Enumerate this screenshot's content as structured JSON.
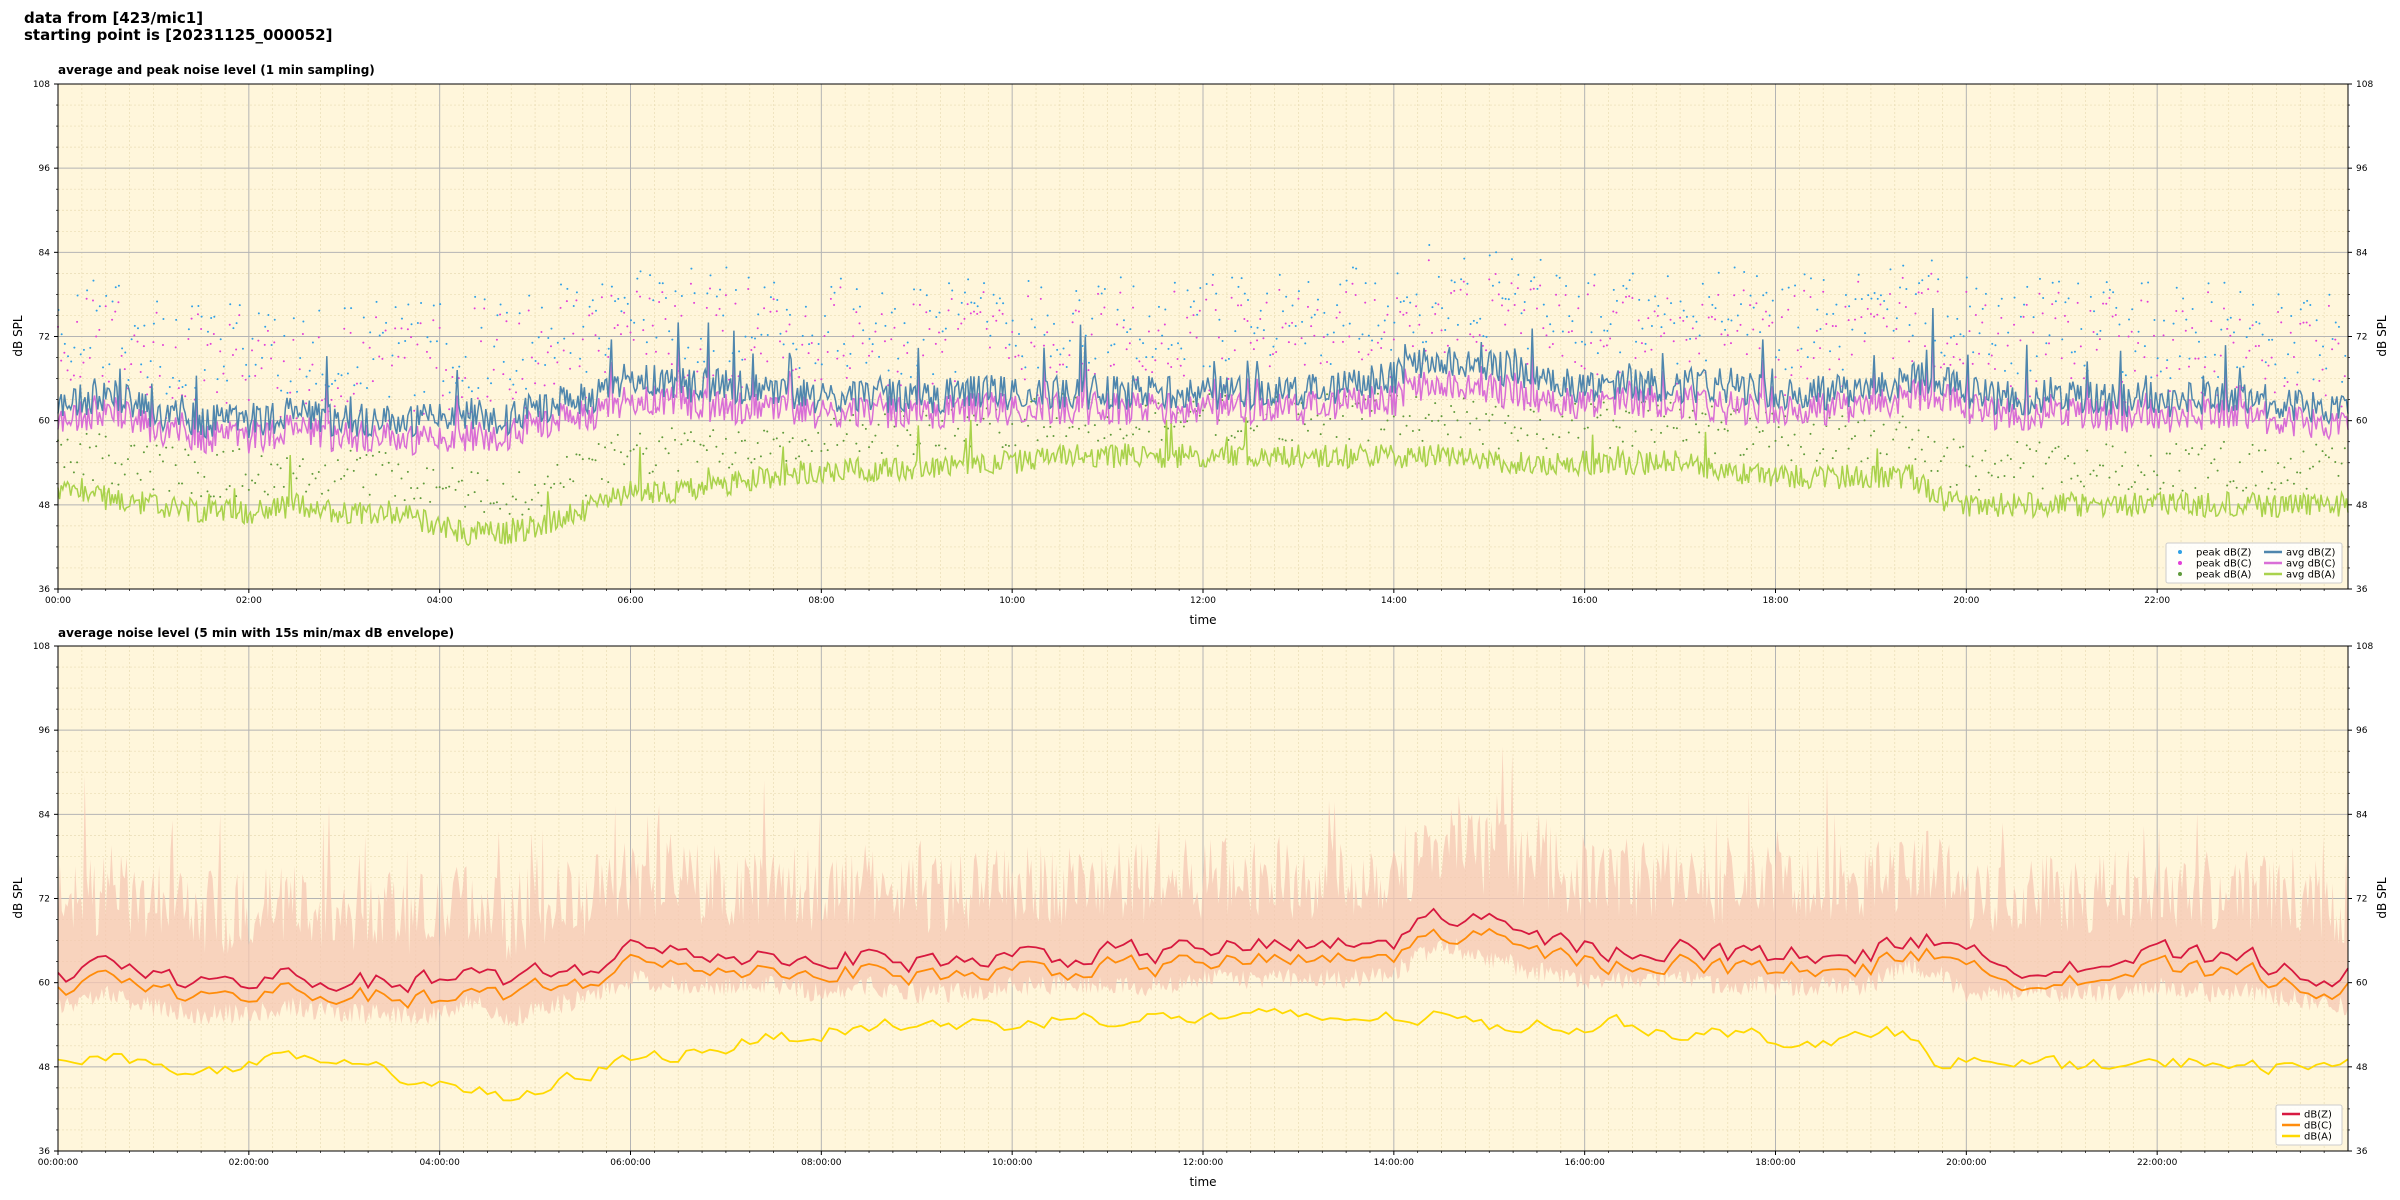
{
  "header": {
    "line1": "data from [423/mic1]",
    "line2": "starting point is [20231125_000052]"
  },
  "chart_data": [
    {
      "type": "line",
      "title": "average and peak noise level (1 min sampling)",
      "xlabel": "time",
      "ylabel": "dB SPL",
      "ylim": [
        36,
        108
      ],
      "yticks": [
        "36",
        "48",
        "60",
        "72",
        "84",
        "96",
        "108"
      ],
      "xlim_hours": [
        0,
        24
      ],
      "xtick_labels": [
        "00:00",
        "02:00",
        "04:00",
        "06:00",
        "08:00",
        "10:00",
        "12:00",
        "14:00",
        "16:00",
        "18:00",
        "20:00",
        "22:00"
      ],
      "grid": true,
      "legend_position": "bottom-right",
      "colors": {
        "plot_bg": "#fff6db",
        "avg_z": "#4f86ad",
        "avg_c": "#d96ed6",
        "avg_a": "#a9d24b",
        "peak_z": "#2fa0e6",
        "peak_c": "#e23fd8",
        "peak_a": "#5f9a3a"
      },
      "legend": [
        {
          "label": "peak dB(Z)",
          "kind": "dot",
          "color": "#2fa0e6"
        },
        {
          "label": "peak dB(C)",
          "kind": "dot",
          "color": "#e23fd8"
        },
        {
          "label": "peak dB(A)",
          "kind": "dot",
          "color": "#5f9a3a"
        },
        {
          "label": "avg dB(Z)",
          "kind": "line",
          "color": "#4f86ad"
        },
        {
          "label": "avg dB(C)",
          "kind": "line",
          "color": "#d96ed6"
        },
        {
          "label": "avg dB(A)",
          "kind": "line",
          "color": "#a9d24b"
        }
      ],
      "trend": {
        "hours": [
          0,
          0.5,
          1,
          1.5,
          2,
          2.5,
          3,
          3.5,
          4,
          4.3,
          4.7,
          5,
          5.5,
          6,
          6.5,
          7,
          7.5,
          8,
          8.5,
          9,
          9.5,
          10,
          10.5,
          11,
          11.5,
          12,
          12.5,
          13,
          13.5,
          14,
          14.5,
          15,
          15.5,
          16,
          16.5,
          17,
          17.5,
          18,
          18.5,
          19,
          19.4,
          19.7,
          20,
          20.5,
          21,
          21.5,
          22,
          22.5,
          23,
          23.5,
          24
        ],
        "avg_z": [
          62,
          64,
          61,
          60,
          60,
          61,
          60,
          60,
          60,
          61,
          60,
          62,
          63,
          66,
          65,
          65,
          64,
          63,
          64,
          63,
          64,
          64,
          64,
          64,
          64,
          64,
          64,
          64,
          65,
          66,
          69,
          68,
          66,
          65,
          65,
          65,
          65,
          64,
          64,
          64,
          66,
          66,
          64,
          63,
          64,
          63,
          63,
          63,
          63,
          62,
          61
        ],
        "avg_c": [
          60,
          62,
          59,
          58,
          58,
          59,
          58,
          58,
          57,
          58,
          58,
          60,
          61,
          63,
          63,
          62,
          62,
          61,
          62,
          61,
          62,
          62,
          62,
          62,
          62,
          62,
          62,
          62,
          63,
          63,
          66,
          65,
          63,
          63,
          63,
          63,
          62,
          62,
          62,
          62,
          64,
          64,
          62,
          61,
          62,
          61,
          61,
          61,
          61,
          60,
          59
        ],
        "avg_a": [
          50,
          49,
          48,
          47,
          47,
          48,
          47,
          47,
          45,
          44,
          44,
          45,
          47,
          50,
          50,
          51,
          52,
          53,
          53,
          53,
          54,
          54,
          55,
          55,
          55,
          55,
          55,
          55,
          55,
          55,
          55,
          54,
          54,
          54,
          54,
          54,
          53,
          52,
          52,
          52,
          52,
          49,
          48,
          48,
          48,
          48,
          48,
          48,
          48,
          48,
          48
        ]
      }
    },
    {
      "type": "area",
      "title": "average noise level (5 min with 15s min/max dB envelope)",
      "xlabel": "time",
      "ylabel": "dB SPL",
      "ylim": [
        36,
        108
      ],
      "yticks": [
        "36",
        "48",
        "60",
        "72",
        "84",
        "96",
        "108"
      ],
      "xlim_hours": [
        0,
        24
      ],
      "xtick_labels": [
        "00:00:00",
        "02:00:00",
        "04:00:00",
        "06:00:00",
        "08:00:00",
        "10:00:00",
        "12:00:00",
        "14:00:00",
        "16:00:00",
        "18:00:00",
        "20:00:00",
        "22:00:00"
      ],
      "grid": true,
      "legend_position": "bottom-right",
      "colors": {
        "plot_bg": "#fff6db",
        "envelope": "#f5c7b3",
        "z": "#d7193f",
        "c": "#ff8c0a",
        "a": "#ffd900"
      },
      "legend": [
        {
          "label": "dB(Z)",
          "kind": "line",
          "color": "#d7193f"
        },
        {
          "label": "dB(C)",
          "kind": "line",
          "color": "#ff8c0a"
        },
        {
          "label": "dB(A)",
          "kind": "line",
          "color": "#ffd900"
        }
      ],
      "trend": {
        "hours": [
          0,
          0.5,
          1,
          1.5,
          2,
          2.5,
          3,
          3.5,
          4,
          4.3,
          4.7,
          5,
          5.5,
          6,
          6.5,
          7,
          7.5,
          8,
          8.5,
          9,
          9.5,
          10,
          10.5,
          11,
          11.5,
          12,
          12.5,
          13,
          13.5,
          14,
          14.5,
          15,
          15.5,
          16,
          16.5,
          17,
          17.5,
          18,
          18.5,
          19,
          19.4,
          19.7,
          20,
          20.5,
          21,
          21.5,
          22,
          22.5,
          23,
          23.5,
          24
        ],
        "z": [
          61,
          63,
          61,
          60,
          60,
          61,
          60,
          60,
          60,
          62,
          59,
          61,
          62,
          65,
          64,
          64,
          64,
          63,
          64,
          63,
          63,
          64,
          64,
          64,
          64,
          65,
          65,
          65,
          65,
          66,
          70,
          68,
          66,
          65,
          65,
          65,
          64,
          64,
          64,
          64,
          67,
          66,
          63,
          63,
          63,
          63,
          64,
          63,
          63,
          62,
          61
        ],
        "c": [
          59,
          61,
          59,
          58,
          58,
          59,
          58,
          58,
          57,
          59,
          57,
          59,
          60,
          63,
          62,
          62,
          62,
          61,
          62,
          61,
          61,
          62,
          62,
          62,
          62,
          63,
          63,
          63,
          63,
          64,
          67,
          66,
          64,
          63,
          63,
          63,
          62,
          62,
          62,
          62,
          65,
          64,
          61,
          61,
          61,
          61,
          62,
          61,
          61,
          60,
          59
        ],
        "a": [
          50,
          49,
          49,
          47,
          48,
          49,
          48,
          47,
          46,
          45,
          43,
          44,
          47,
          49,
          50,
          51,
          52,
          53,
          54,
          54,
          54,
          54,
          55,
          55,
          55,
          55,
          55,
          55,
          55,
          55,
          55,
          54,
          54,
          54,
          54,
          53,
          53,
          52,
          52,
          52,
          53,
          49,
          49,
          48,
          48,
          48,
          48,
          49,
          48,
          48,
          48
        ]
      }
    }
  ]
}
